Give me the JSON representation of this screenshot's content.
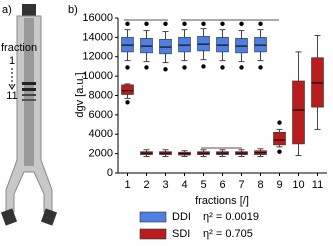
{
  "diagram": {
    "label": "a)",
    "caption": "fraction",
    "start": "1",
    "end": "11"
  },
  "chart_data": {
    "type": "box",
    "label": "b)",
    "categories": [
      "1",
      "2",
      "3",
      "4",
      "5",
      "6",
      "7",
      "8",
      "9",
      "10",
      "11"
    ],
    "ylabel": "dgv [a.u.]",
    "xlabel": "fractions [/]",
    "ylim": [
      0,
      16000
    ],
    "yticks": [
      0,
      2000,
      4000,
      6000,
      8000,
      10000,
      12000,
      14000,
      16000
    ],
    "series": [
      {
        "name": "DDI",
        "annotation": "η² = 0.0019",
        "color": "#4f7fe0",
        "values": [
          {
            "min": 11600,
            "q1": 12500,
            "median": 13200,
            "q3": 14000,
            "max": 14800,
            "outliers": [
              15400,
              10900
            ]
          },
          {
            "min": 11500,
            "q1": 12400,
            "median": 13100,
            "q3": 13900,
            "max": 14700,
            "outliers": [
              15400,
              10900
            ]
          },
          {
            "min": 11400,
            "q1": 12300,
            "median": 13000,
            "q3": 13800,
            "max": 14600,
            "outliers": [
              15400,
              10700
            ]
          },
          {
            "min": 11600,
            "q1": 12500,
            "median": 13200,
            "q3": 14000,
            "max": 14800,
            "outliers": [
              15400,
              10900
            ]
          },
          {
            "min": 11700,
            "q1": 12600,
            "median": 13300,
            "q3": 14100,
            "max": 14900,
            "outliers": [
              15400,
              11000
            ]
          },
          {
            "min": 11600,
            "q1": 12500,
            "median": 13200,
            "q3": 14000,
            "max": 14800,
            "outliers": [
              15400,
              10900
            ]
          },
          {
            "min": 11500,
            "q1": 12400,
            "median": 13100,
            "q3": 13900,
            "max": 14700,
            "outliers": [
              15400,
              10900
            ]
          },
          {
            "min": 11600,
            "q1": 12500,
            "median": 13200,
            "q3": 14000,
            "max": 14800,
            "outliers": [
              15400,
              10900
            ]
          },
          null,
          null,
          null
        ]
      },
      {
        "name": "SDI",
        "annotation": "η² = 0.705",
        "color": "#b81c1c",
        "values": [
          {
            "min": 7700,
            "q1": 8100,
            "median": 8500,
            "q3": 9100,
            "max": 9200,
            "outliers": [
              7300
            ]
          },
          {
            "min": 1700,
            "q1": 1900,
            "median": 2050,
            "q3": 2200,
            "max": 2400,
            "outliers": []
          },
          {
            "min": 1700,
            "q1": 1900,
            "median": 2050,
            "q3": 2200,
            "max": 2400,
            "outliers": []
          },
          {
            "min": 1700,
            "q1": 1850,
            "median": 2000,
            "q3": 2150,
            "max": 2300,
            "outliers": []
          },
          {
            "min": 1700,
            "q1": 1900,
            "median": 2050,
            "q3": 2200,
            "max": 2400,
            "outliers": []
          },
          {
            "min": 1700,
            "q1": 1900,
            "median": 2050,
            "q3": 2200,
            "max": 2400,
            "outliers": []
          },
          {
            "min": 1700,
            "q1": 1900,
            "median": 2050,
            "q3": 2200,
            "max": 2400,
            "outliers": []
          },
          {
            "min": 1700,
            "q1": 1900,
            "median": 2100,
            "q3": 2300,
            "max": 2500,
            "outliers": []
          },
          {
            "min": 2700,
            "q1": 2900,
            "median": 3400,
            "q3": 4200,
            "max": 4500,
            "outliers": [
              5200,
              2200
            ]
          },
          {
            "min": 1800,
            "q1": 3000,
            "median": 6500,
            "q3": 9500,
            "max": 12500,
            "outliers": []
          },
          {
            "min": 4500,
            "q1": 6800,
            "median": 9300,
            "q3": 11900,
            "max": 14200,
            "outliers": []
          }
        ]
      }
    ]
  }
}
